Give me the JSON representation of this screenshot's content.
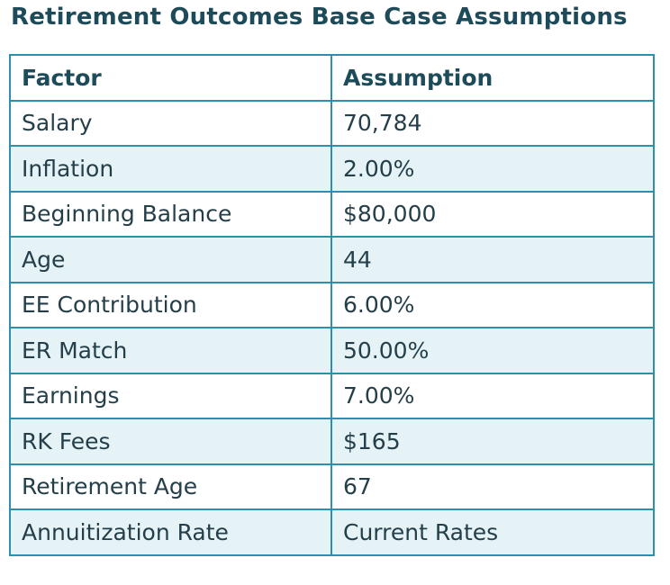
{
  "title": "Retirement Outcomes Base Case Assumptions",
  "table": {
    "header": [
      "Factor",
      "Assumption"
    ],
    "rows": [
      [
        "Salary",
        "70,784"
      ],
      [
        "Inflation",
        "2.00%"
      ],
      [
        "Beginning Balance",
        "$80,000"
      ],
      [
        "Age",
        "44"
      ],
      [
        "EE Contribution",
        "6.00%"
      ],
      [
        "ER Match",
        "50.00%"
      ],
      [
        "Earnings",
        "7.00%"
      ],
      [
        "RK Fees",
        "$165"
      ],
      [
        "Retirement Age",
        "67"
      ],
      [
        "Annuitization Rate",
        "Current Rates"
      ]
    ]
  }
}
